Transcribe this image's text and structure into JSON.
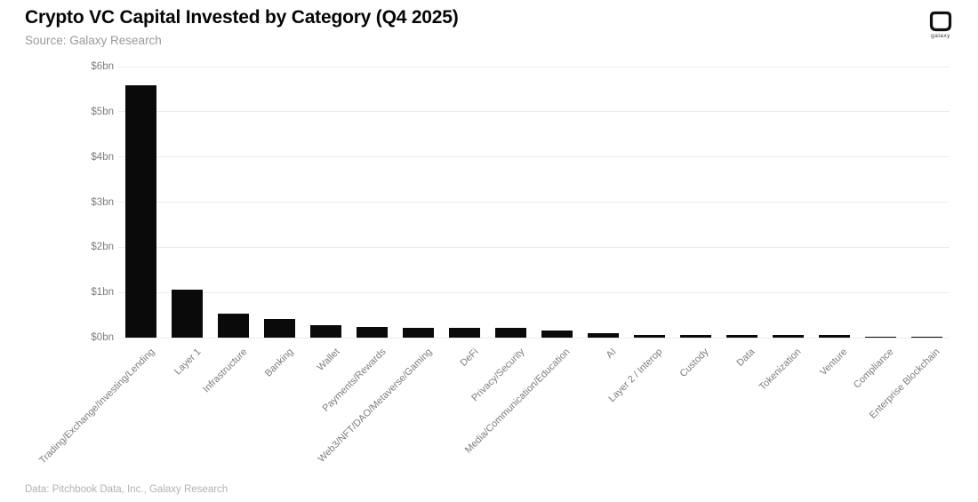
{
  "header": {
    "title": "Crypto VC Capital Invested by Category (Q4 2025)",
    "subtitle": "Source: Galaxy Research",
    "logo_label": "galaxy"
  },
  "footer": {
    "credit": "Data: Pitchbook Data, Inc., Galaxy Research"
  },
  "chart_data": {
    "type": "bar",
    "title": "Crypto VC Capital Invested by Category (Q4 2025)",
    "categories": [
      "Trading/Exchange/Investing/Lending",
      "Layer 1",
      "Infrastructure",
      "Banking",
      "Wallet",
      "Payments/Rewards",
      "Web3/NFT/DAO/Metaverse/Gaming",
      "DeFi",
      "Privacy/Security",
      "Media/Communication/Education",
      "AI",
      "Layer 2 / Interop",
      "Custody",
      "Data",
      "Tokenization",
      "Venture",
      "Compliance",
      "Enterprise Blockchain"
    ],
    "values": [
      5.58,
      1.06,
      0.53,
      0.41,
      0.28,
      0.24,
      0.21,
      0.22,
      0.22,
      0.15,
      0.1,
      0.055,
      0.055,
      0.05,
      0.05,
      0.05,
      0.02,
      0.02
    ],
    "unit": "bn USD",
    "xlabel": "",
    "ylabel": "",
    "ylim": [
      0,
      6
    ],
    "ytick_labels": [
      "$0bn",
      "$1bn",
      "$2bn",
      "$3bn",
      "$4bn",
      "$5bn",
      "$6bn"
    ],
    "grid": true,
    "legend": "none",
    "bar_color": "#0a0a0a",
    "gridline_color": "#ececec",
    "axis_label_color": "#7d7d7d"
  }
}
